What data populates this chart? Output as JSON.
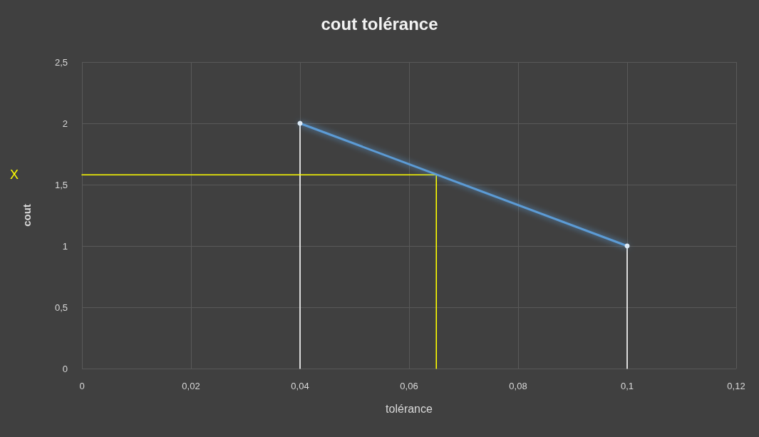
{
  "chart_data": {
    "type": "line",
    "title": "cout tolérance",
    "xlabel": "tolérance",
    "ylabel": "cout",
    "xlim": [
      0,
      0.12
    ],
    "xticks": [
      0,
      {
        "value": 0.02,
        "label": "0,02"
      },
      {
        "value": 0.04,
        "label": "0,04"
      },
      {
        "value": 0.06,
        "label": "0,06"
      },
      {
        "value": 0.08,
        "label": "0,08"
      },
      {
        "value": 0.1,
        "label": "0,1"
      },
      {
        "value": 0.12,
        "label": "0,12"
      }
    ],
    "ylim": [
      0,
      2.5
    ],
    "yticks": [
      0,
      {
        "value": 0.5,
        "label": "0,5"
      },
      1,
      {
        "value": 1.5,
        "label": "1,5"
      },
      2,
      {
        "value": 2.5,
        "label": "2,5"
      }
    ],
    "grid": true,
    "series": [
      {
        "color": "#5b9bd5",
        "x": [
          0.04,
          0.1
        ],
        "values": [
          2,
          1
        ],
        "marker": "circle"
      },
      {
        "color": "#ffffff",
        "x": [
          0.04,
          0.04
        ],
        "values": [
          0,
          2
        ],
        "marker": "none"
      },
      {
        "color": "#ffffff",
        "x": [
          0.1,
          0.1
        ],
        "values": [
          0,
          1
        ],
        "marker": "none"
      },
      {
        "color": "#ffff00",
        "x": [
          0,
          0.065,
          0.065
        ],
        "values": [
          1.58,
          1.58,
          0
        ],
        "marker": "none"
      }
    ],
    "annotations": [
      "X"
    ]
  }
}
